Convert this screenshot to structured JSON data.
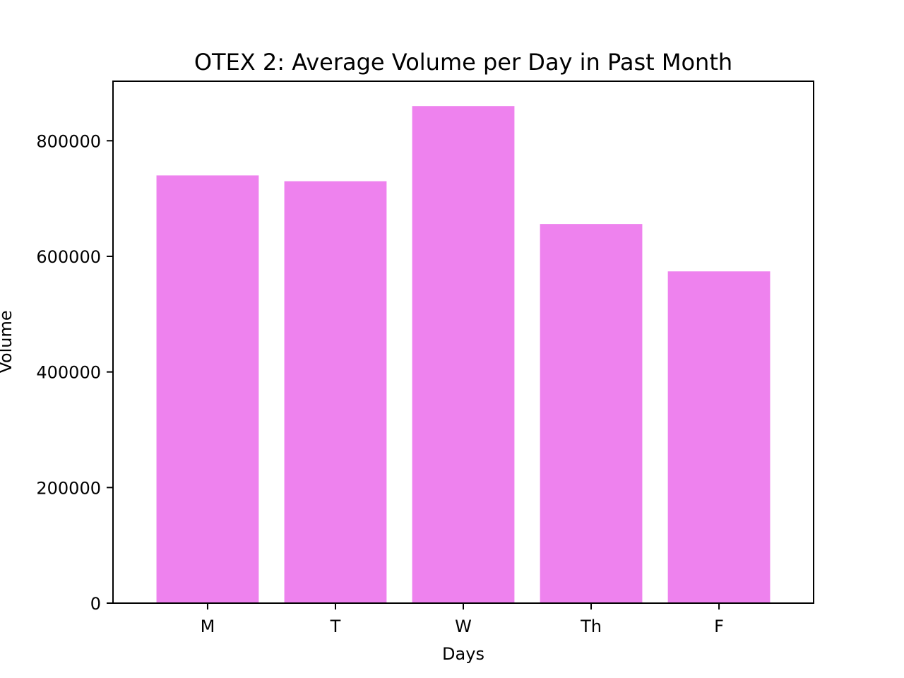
{
  "chart_data": {
    "type": "bar",
    "title": "OTEX 2: Average Volume per Day in Past Month",
    "xlabel": "Days",
    "ylabel": "Volume",
    "categories": [
      "M",
      "T",
      "W",
      "Th",
      "F"
    ],
    "values": [
      740000,
      730000,
      860000,
      656000,
      574000
    ],
    "ylim": [
      0,
      903000
    ],
    "yticks": [
      0,
      200000,
      400000,
      600000,
      800000
    ],
    "ytick_labels": [
      "0",
      "200000",
      "400000",
      "600000",
      "800000"
    ],
    "bar_color": "#ee82ee",
    "grid": false,
    "legend": "none"
  }
}
